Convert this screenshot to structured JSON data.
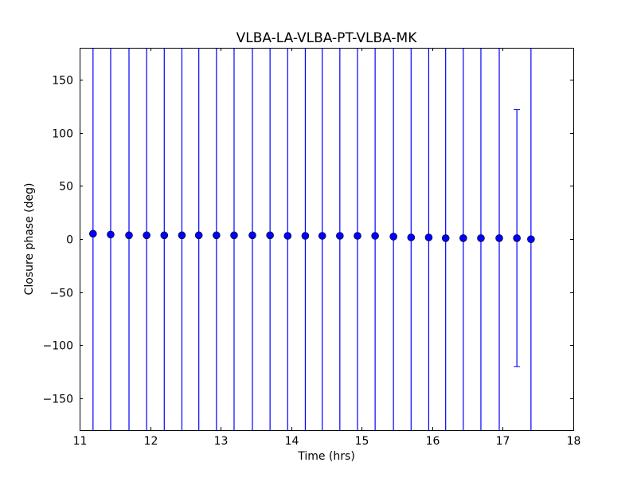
{
  "chart_data": {
    "type": "scatter",
    "title": "VLBA-LA-VLBA-PT-VLBA-MK",
    "xlabel": "Time (hrs)",
    "ylabel": "Closure phase (deg)",
    "xlim": [
      11,
      18
    ],
    "ylim": [
      -180,
      180
    ],
    "xticks": [
      11,
      12,
      13,
      14,
      15,
      16,
      17,
      18
    ],
    "yticks": [
      -150,
      -100,
      -50,
      0,
      50,
      100,
      150
    ],
    "ytick_labels": [
      "−150",
      "−100",
      "−50",
      "0",
      "50",
      "100",
      "150"
    ],
    "grid": false,
    "color": "#0000ff",
    "x": [
      11.19,
      11.44,
      11.7,
      11.95,
      12.2,
      12.45,
      12.69,
      12.94,
      13.19,
      13.45,
      13.7,
      13.95,
      14.2,
      14.44,
      14.69,
      14.94,
      15.19,
      15.45,
      15.7,
      15.95,
      16.19,
      16.44,
      16.69,
      16.95,
      17.2,
      17.4
    ],
    "y": [
      5.0,
      4.2,
      3.5,
      3.5,
      3.5,
      3.5,
      3.5,
      3.5,
      3.5,
      3.5,
      3.5,
      3.0,
      3.0,
      3.0,
      3.0,
      3.0,
      3.0,
      2.3,
      1.5,
      1.5,
      0.8,
      0.8,
      0.8,
      0.8,
      0.8,
      -0.2
    ],
    "yerr": [
      200,
      200,
      200,
      200,
      200,
      200,
      200,
      200,
      200,
      200,
      200,
      200,
      200,
      200,
      200,
      200,
      200,
      200,
      200,
      200,
      200,
      200,
      200,
      200,
      121,
      200
    ]
  }
}
